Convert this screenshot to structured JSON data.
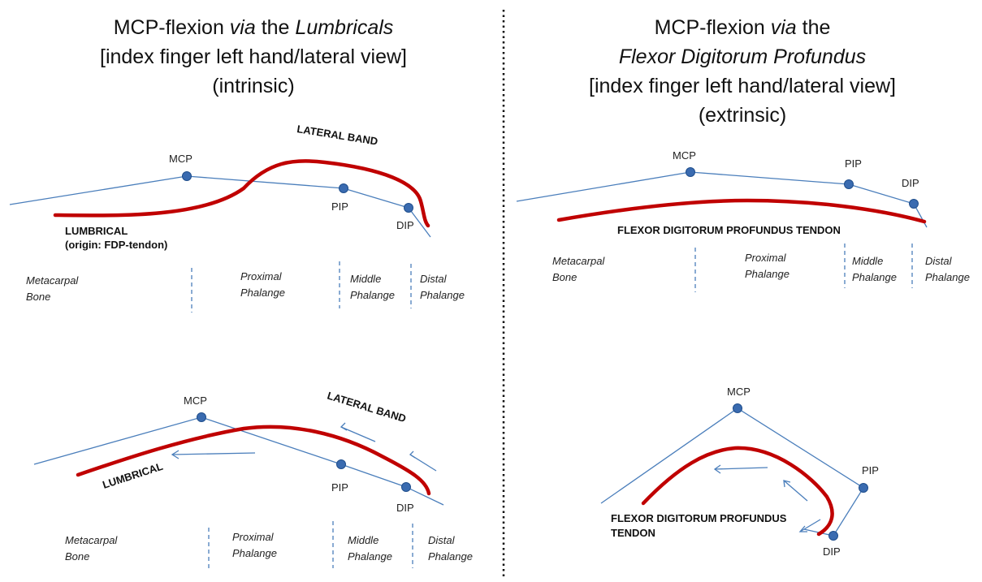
{
  "left_panel": {
    "title_line1_a": "MCP-flexion ",
    "title_line1_via": "via",
    "title_line1_the": " the ",
    "title_line1_b": "Lumbricals",
    "title_line2": "[index finger left hand/lateral view]",
    "title_line3": "(intrinsic)"
  },
  "right_panel": {
    "title_line1_a": "MCP-flexion ",
    "title_line1_via": "via",
    "title_line1_b": " the",
    "title_line2": "Flexor Digitorum Profundus",
    "title_line3": "[index finger left hand/lateral view]",
    "title_line4": "(extrinsic)"
  },
  "joints": {
    "mcp": "MCP",
    "pip": "PIP",
    "dip": "DIP"
  },
  "labels": {
    "lateral_band": "LATERAL BAND",
    "lumbrical_caps": "LUMBRICAL",
    "lumbrical_origin": "(origin: FDP-tendon)",
    "lumbrical_rotated": "LUMBRICAL",
    "fdp_tendon": "FLEXOR DIGITORUM PROFUNDUS TENDON",
    "fdp_line1": "FLEXOR DIGITORUM PROFUNDUS",
    "fdp_line2": "TENDON"
  },
  "bones": {
    "metacarpal_1": "Metacarpal",
    "metacarpal_2": "Bone",
    "proximal_1": "Proximal",
    "proximal_2": "Phalange",
    "middle_1": "Middle",
    "middle_2": "Phalange",
    "distal_1": "Distal",
    "distal_2": "Phalange"
  },
  "colors": {
    "bone_line": "#4a7ebb",
    "tendon": "#c00000",
    "joint": "#3a6bb0"
  }
}
